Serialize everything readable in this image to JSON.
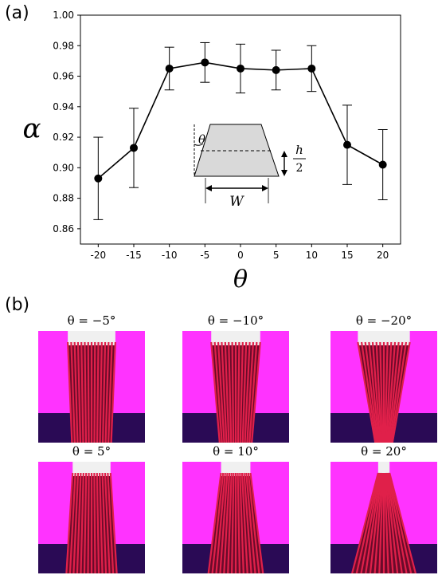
{
  "panel_a": {
    "label": "(a)"
  },
  "panel_b": {
    "label": "(b)",
    "captions": [
      "θ = −5°",
      "θ = −10°",
      "θ = −20°",
      "θ = 5°",
      "θ = 10°",
      "θ = 20°"
    ],
    "thumbnails": [
      {
        "angle": -5
      },
      {
        "angle": -10
      },
      {
        "angle": -20
      },
      {
        "angle": 5
      },
      {
        "angle": 10
      },
      {
        "angle": 20
      }
    ],
    "colors": {
      "wall": "#ff33ff",
      "base": "#2a0a55",
      "stripe": "#e0204a",
      "stripe_dark": "#6a0a2a",
      "top": "#f0f0f0"
    }
  },
  "chart_data": {
    "type": "line",
    "x": [
      -20,
      -15,
      -10,
      -5,
      0,
      5,
      10,
      15,
      20
    ],
    "series": [
      {
        "values": [
          0.893,
          0.913,
          0.965,
          0.969,
          0.965,
          0.964,
          0.965,
          0.915,
          0.902
        ],
        "errors": [
          0.027,
          0.026,
          0.014,
          0.013,
          0.016,
          0.013,
          0.015,
          0.026,
          0.023
        ]
      }
    ],
    "xlabel": "θ",
    "ylabel": "α",
    "xlim": [
      -22.5,
      22.5
    ],
    "ylim": [
      0.85,
      1.0
    ],
    "xticks": [
      -20,
      -15,
      -10,
      -5,
      0,
      5,
      10,
      15,
      20
    ],
    "yticks": [
      0.86,
      0.88,
      0.9,
      0.92,
      0.94,
      0.96,
      0.98,
      1.0
    ],
    "ytick_labels": [
      "0.86",
      "0.88",
      "0.90",
      "0.92",
      "0.94",
      "0.96",
      "0.98",
      "1.00"
    ],
    "grid": false,
    "inset": {
      "angle_label": "θ",
      "width_label": "W",
      "height_num": "h",
      "height_den": "2"
    },
    "colors": {
      "line": "#000000",
      "inset_fill": "#d9d9d9"
    }
  }
}
